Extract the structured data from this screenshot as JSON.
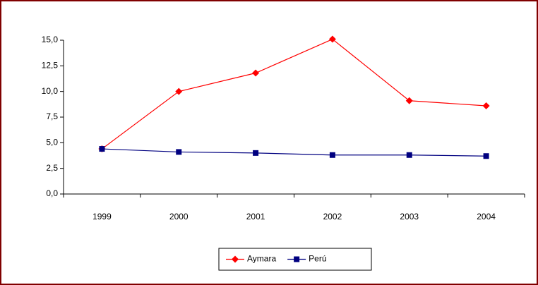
{
  "chart_data": {
    "type": "line",
    "categories": [
      "1999",
      "2000",
      "2001",
      "2002",
      "2003",
      "2004"
    ],
    "series": [
      {
        "name": "Aymara",
        "color": "#ff0000",
        "marker": "diamond",
        "values": [
          4.4,
          10.0,
          11.8,
          15.1,
          9.1,
          8.6
        ]
      },
      {
        "name": "Perú",
        "color": "#000080",
        "marker": "square",
        "values": [
          4.4,
          4.1,
          4.0,
          3.8,
          3.8,
          3.7
        ]
      }
    ],
    "ylim": [
      0,
      15
    ],
    "yticks": [
      {
        "value": 0,
        "label": "0,0"
      },
      {
        "value": 2.5,
        "label": "2,5"
      },
      {
        "value": 5,
        "label": "5,0"
      },
      {
        "value": 7.5,
        "label": "7,5"
      },
      {
        "value": 10,
        "label": "10,0"
      },
      {
        "value": 12.5,
        "label": "12,5"
      },
      {
        "value": 15,
        "label": "15,0"
      }
    ],
    "grid": false,
    "legend": "bottom"
  }
}
